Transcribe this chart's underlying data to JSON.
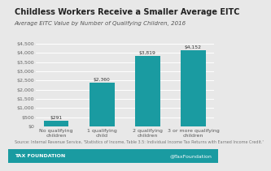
{
  "title": "Childless Workers Receive a Smaller Average EITC",
  "subtitle": "Average EITC Value by Number of Qualifying Children, 2016",
  "categories": [
    "No qualifying\nchildren",
    "1 qualifying\nchild",
    "2 qualifying\nchildren",
    "3 or more qualifying\nchildren"
  ],
  "values": [
    291,
    2360,
    3819,
    4152
  ],
  "bar_labels": [
    "$291",
    "$2,360",
    "$3,819",
    "$4,152"
  ],
  "bar_color": "#1a9ba1",
  "background_color": "#e8e8e8",
  "plot_bg_color": "#e8e8e8",
  "footer_bg_color": "#1a9ba1",
  "ylim": [
    0,
    4500
  ],
  "yticks": [
    0,
    500,
    1000,
    1500,
    2000,
    2500,
    3000,
    3500,
    4000,
    4500
  ],
  "source_text": "Source: Internal Revenue Service, 'Statistics of Income, Table 3.5: Individual Income Tax Returns with Earned Income Credit.'",
  "footer_left": "TAX FOUNDATION",
  "footer_right": "@TaxFoundation",
  "title_fontsize": 7.0,
  "subtitle_fontsize": 5.0,
  "tick_fontsize": 4.5,
  "label_fontsize": 4.3,
  "source_fontsize": 3.5,
  "footer_fontsize": 4.5
}
